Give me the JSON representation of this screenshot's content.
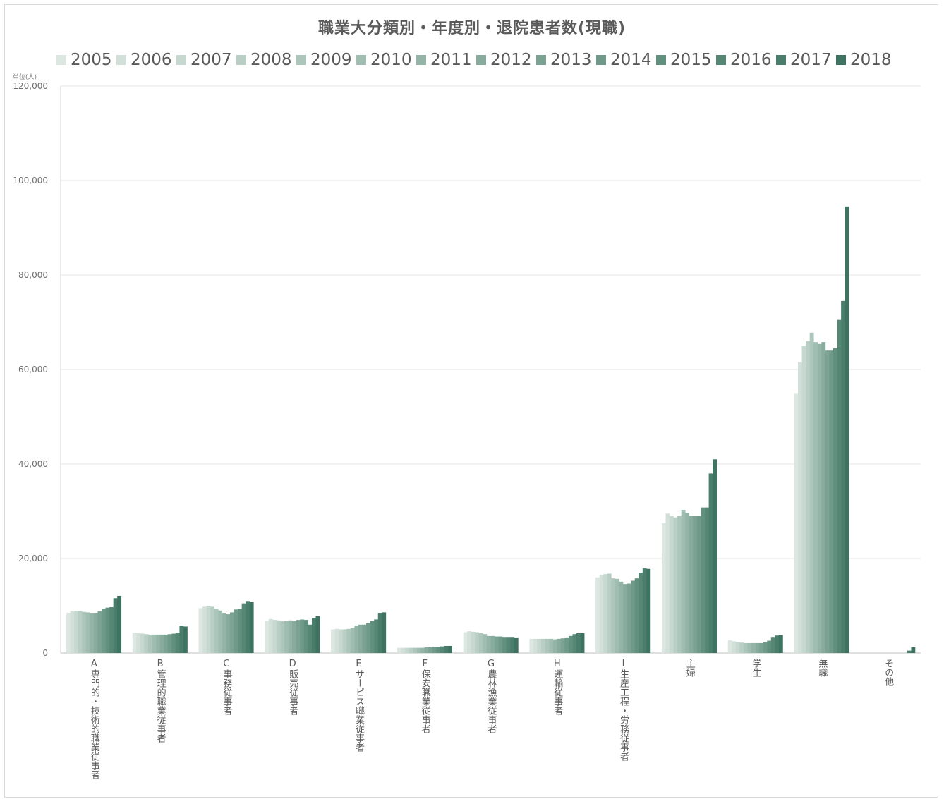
{
  "chart_data": {
    "type": "bar",
    "title": "職業大分類別・年度別・退院患者数(現職)",
    "unit_label": "単位(人)",
    "ylim": [
      0,
      120000
    ],
    "yticks": [
      0,
      20000,
      40000,
      60000,
      80000,
      100000,
      120000
    ],
    "ytick_labels": [
      "0",
      "20,000",
      "40,000",
      "60,000",
      "80,000",
      "100,000",
      "120,000"
    ],
    "grid": true,
    "legend_position": "top",
    "categories": [
      "A専門的・技術的職業従事者",
      "B管理的職業従事者",
      "C事務従事者",
      "D販売従事者",
      "Eサービス職業従事者",
      "F保安職業従事者",
      "G農林漁業従事者",
      "H運輸従事者",
      "I生産工程・労務従事者",
      "主婦",
      "学生",
      "無職",
      "その他"
    ],
    "series": [
      {
        "name": "2005",
        "color": "#dde7e2",
        "values": [
          8500,
          4300,
          9500,
          6800,
          5000,
          1100,
          4400,
          3000,
          16000,
          27500,
          2700,
          55000,
          0
        ]
      },
      {
        "name": "2006",
        "color": "#d2e0d9",
        "values": [
          8800,
          4200,
          9800,
          7200,
          5100,
          1100,
          4600,
          3000,
          16500,
          29500,
          2500,
          61500,
          0
        ]
      },
      {
        "name": "2007",
        "color": "#c6d8cf",
        "values": [
          8900,
          4100,
          10000,
          7000,
          5000,
          1100,
          4500,
          3000,
          16700,
          29000,
          2300,
          65000,
          0
        ]
      },
      {
        "name": "2008",
        "color": "#b9cfc5",
        "values": [
          8900,
          4000,
          9800,
          6900,
          5000,
          1100,
          4400,
          3000,
          16800,
          28700,
          2200,
          66000,
          0
        ]
      },
      {
        "name": "2009",
        "color": "#adc6bb",
        "values": [
          8700,
          3900,
          9400,
          6700,
          5100,
          1100,
          4200,
          3000,
          15800,
          29000,
          2100,
          67800,
          0
        ]
      },
      {
        "name": "2010",
        "color": "#a0bdb1",
        "values": [
          8600,
          3900,
          9000,
          6800,
          5300,
          1100,
          4000,
          3000,
          15700,
          30300,
          2100,
          65800,
          0
        ]
      },
      {
        "name": "2011",
        "color": "#94b4a7",
        "values": [
          8500,
          3900,
          8500,
          6900,
          5800,
          1100,
          3600,
          2900,
          15100,
          29700,
          2100,
          65400,
          0
        ]
      },
      {
        "name": "2012",
        "color": "#87ab9d",
        "values": [
          8500,
          3900,
          8200,
          6800,
          6000,
          1200,
          3600,
          3000,
          14600,
          29000,
          2100,
          65800,
          0
        ]
      },
      {
        "name": "2013",
        "color": "#7ba293",
        "values": [
          8800,
          3900,
          8600,
          7000,
          6000,
          1200,
          3500,
          3100,
          14700,
          29000,
          2100,
          64000,
          0
        ]
      },
      {
        "name": "2014",
        "color": "#6f9989",
        "values": [
          9300,
          4000,
          9200,
          7100,
          6300,
          1300,
          3500,
          3300,
          15300,
          29000,
          2300,
          64000,
          0
        ]
      },
      {
        "name": "2015",
        "color": "#62907f",
        "values": [
          9600,
          4100,
          9300,
          7000,
          6800,
          1300,
          3400,
          3600,
          15800,
          30800,
          2600,
          64500,
          0
        ]
      },
      {
        "name": "2016",
        "color": "#568775",
        "values": [
          9700,
          4300,
          10500,
          6000,
          7100,
          1400,
          3400,
          4000,
          17000,
          30800,
          3400,
          70500,
          0
        ]
      },
      {
        "name": "2017",
        "color": "#4a7d6b",
        "values": [
          11600,
          5800,
          11000,
          7400,
          8500,
          1500,
          3400,
          4200,
          17900,
          38000,
          3700,
          74500,
          500
        ]
      },
      {
        "name": "2018",
        "color": "#3d7360",
        "values": [
          12100,
          5600,
          10800,
          7800,
          8600,
          1500,
          3300,
          4200,
          17800,
          41000,
          3800,
          94500,
          1200
        ]
      }
    ]
  }
}
